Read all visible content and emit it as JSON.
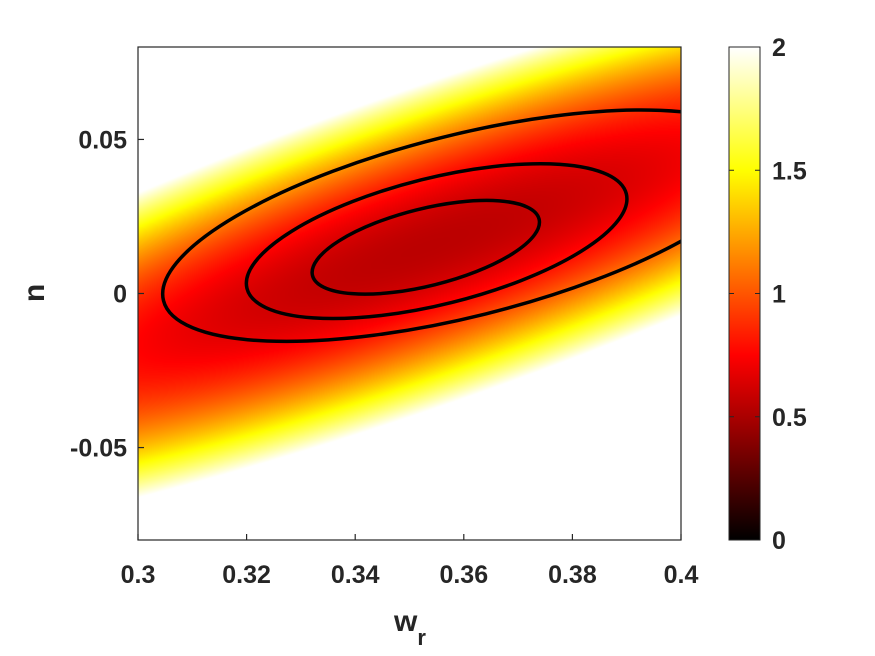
{
  "chart_data": {
    "type": "heatmap",
    "title": "",
    "xlabel": "w",
    "xlabel_subscript": "r",
    "ylabel": "n",
    "xlim": [
      0.3,
      0.4
    ],
    "ylim": [
      -0.08,
      0.08
    ],
    "x_ticks": [
      {
        "value": 0.3,
        "label": "0.3"
      },
      {
        "value": 0.32,
        "label": "0.32"
      },
      {
        "value": 0.34,
        "label": "0.34"
      },
      {
        "value": 0.36,
        "label": "0.36"
      },
      {
        "value": 0.38,
        "label": "0.38"
      },
      {
        "value": 0.4,
        "label": "0.4"
      }
    ],
    "y_ticks": [
      {
        "value": 0.05,
        "label": "0.05"
      },
      {
        "value": 0.0,
        "label": "0"
      },
      {
        "value": -0.05,
        "label": "-0.05"
      }
    ],
    "colorbar": {
      "colormap": "hot",
      "range": [
        0,
        2
      ],
      "ticks": [
        {
          "value": 0,
          "label": "0"
        },
        {
          "value": 0.5,
          "label": "0.5"
        },
        {
          "value": 1,
          "label": "1"
        },
        {
          "value": 1.5,
          "label": "1.5"
        },
        {
          "value": 2,
          "label": "2"
        }
      ]
    },
    "field": {
      "description_values": "misfit surface, minimum near w_r=0.353, n=0.015",
      "min_value": 0.55,
      "center": [
        0.353,
        0.015
      ],
      "ridge_slope": 0.6,
      "half_width_along_x": 0.05,
      "half_width_across_n": 0.042
    },
    "contours": [
      {
        "level": 0.6,
        "center": [
          0.353,
          0.015
        ],
        "rx": 0.0215,
        "ry": 0.0125,
        "angle_deg": 14
      },
      {
        "level": 0.7,
        "center": [
          0.355,
          0.017
        ],
        "rx": 0.036,
        "ry": 0.0205,
        "angle_deg": 14
      },
      {
        "level": 0.85,
        "center": [
          0.36,
          0.022
        ],
        "rx": 0.057,
        "ry": 0.0295,
        "angle_deg": 14
      }
    ],
    "grid": false,
    "legend": "none"
  }
}
